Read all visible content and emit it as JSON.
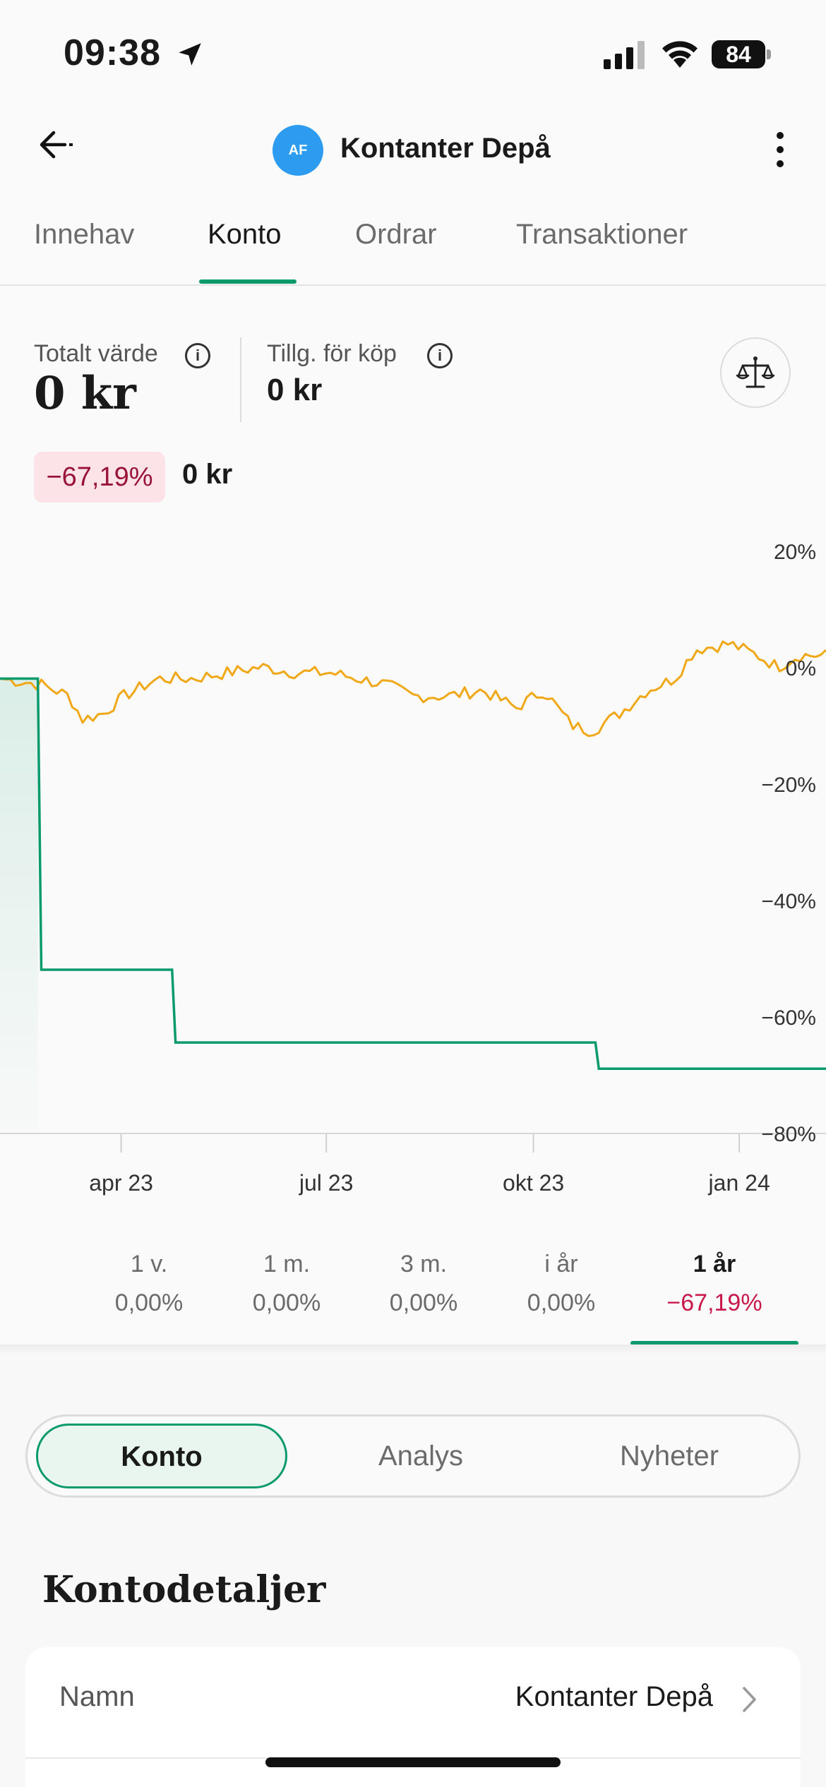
{
  "status_bar": {
    "time": "09:38",
    "battery": "84"
  },
  "header": {
    "avatar_initials": "AF",
    "title": "Kontanter Depå"
  },
  "tabs": [
    {
      "label": "Innehav",
      "active": false
    },
    {
      "label": "Konto",
      "active": true
    },
    {
      "label": "Ordrar",
      "active": false
    },
    {
      "label": "Transaktioner",
      "active": false
    }
  ],
  "summary": {
    "total_label": "Totalt värde",
    "total_value": "0 kr",
    "available_label": "Tillg. för köp",
    "available_value": "0 kr",
    "change_pct": "−67,19%",
    "change_abs": "0 kr"
  },
  "chart_data": {
    "type": "line",
    "series": [],
    "x_tick_labels": [
      "apr 23",
      "jul 23",
      "okt 23",
      "jan 24"
    ],
    "y_tick_labels": [
      "20%",
      "0%",
      "−20%",
      "−40%",
      "−60%",
      "−80%"
    ],
    "ylim": [
      -80,
      20
    ],
    "account_steps": [
      {
        "month": 0.0,
        "value": -2
      },
      {
        "month": 0.55,
        "value": -2
      },
      {
        "month": 0.6,
        "value": -52
      },
      {
        "month": 2.5,
        "value": -52
      },
      {
        "month": 2.55,
        "value": -64.5
      },
      {
        "month": 8.65,
        "value": -64.5
      },
      {
        "month": 8.7,
        "value": -69
      },
      {
        "month": 12.0,
        "value": -69
      }
    ],
    "index_points": [
      {
        "month": 0.0,
        "value": -2
      },
      {
        "month": 0.6,
        "value": -3
      },
      {
        "month": 1.0,
        "value": -5
      },
      {
        "month": 1.2,
        "value": -9
      },
      {
        "month": 1.5,
        "value": -8
      },
      {
        "month": 1.8,
        "value": -5
      },
      {
        "month": 2.3,
        "value": -2
      },
      {
        "month": 2.8,
        "value": -2
      },
      {
        "month": 3.3,
        "value": -1
      },
      {
        "month": 3.8,
        "value": 0
      },
      {
        "month": 4.3,
        "value": -1
      },
      {
        "month": 4.8,
        "value": -1
      },
      {
        "month": 5.2,
        "value": -2
      },
      {
        "month": 5.6,
        "value": -3
      },
      {
        "month": 6.0,
        "value": -5
      },
      {
        "month": 6.5,
        "value": -5
      },
      {
        "month": 7.0,
        "value": -4
      },
      {
        "month": 7.5,
        "value": -7
      },
      {
        "month": 7.9,
        "value": -4
      },
      {
        "month": 8.3,
        "value": -10
      },
      {
        "month": 8.6,
        "value": -11
      },
      {
        "month": 9.0,
        "value": -8
      },
      {
        "month": 9.4,
        "value": -4
      },
      {
        "month": 9.8,
        "value": -2
      },
      {
        "month": 10.1,
        "value": 3
      },
      {
        "month": 10.6,
        "value": 4
      },
      {
        "month": 11.0,
        "value": 2
      },
      {
        "month": 11.3,
        "value": 0
      },
      {
        "month": 11.6,
        "value": 2
      },
      {
        "month": 12.0,
        "value": 2
      }
    ],
    "colors": {
      "account": "#0a9a6c",
      "index": "#f0a818"
    },
    "grid": false
  },
  "periods": [
    {
      "label": "1 v.",
      "value": "0,00%",
      "active": false
    },
    {
      "label": "1 m.",
      "value": "0,00%",
      "active": false
    },
    {
      "label": "3 m.",
      "value": "0,00%",
      "active": false
    },
    {
      "label": "i år",
      "value": "0,00%",
      "active": false
    },
    {
      "label": "1 år",
      "value": "−67,19%",
      "active": true
    }
  ],
  "segmented": [
    {
      "label": "Konto",
      "active": true
    },
    {
      "label": "Analys",
      "active": false
    },
    {
      "label": "Nyheter",
      "active": false
    }
  ],
  "details": {
    "title": "Kontodetaljer",
    "rows": [
      {
        "label": "Namn",
        "value": "Kontanter Depå"
      }
    ]
  },
  "colors": {
    "accent": "#0a9a6c",
    "negative": "#c8194a",
    "negative_bg": "#fbe3e7",
    "avatar": "#2d9cf0"
  },
  "icons": [
    "location-arrow-icon",
    "signal-icon",
    "wifi-icon",
    "battery-icon",
    "back-arrow-icon",
    "more-vertical-icon",
    "info-icon",
    "scale-icon",
    "chevron-right-icon"
  ]
}
